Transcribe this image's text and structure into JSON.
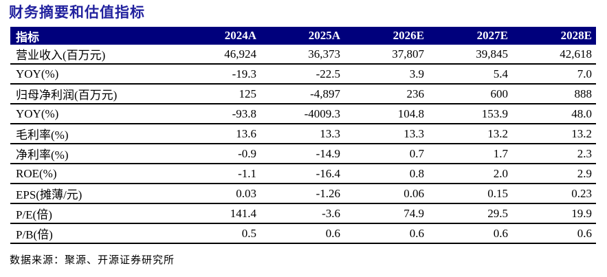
{
  "title": "财务摘要和估值指标",
  "colors": {
    "title_blue": "#22229e",
    "header_navy": "#00007c",
    "header_text": "#ffffff",
    "row_rule": "#000000",
    "body_text": "#000000"
  },
  "table": {
    "columns": [
      "指标",
      "2024A",
      "2025A",
      "2026E",
      "2027E",
      "2028E"
    ],
    "rows": [
      {
        "label": "营业收入(百万元)",
        "values": [
          "46,924",
          "36,373",
          "37,807",
          "39,845",
          "42,618"
        ]
      },
      {
        "label": "YOY(%)",
        "values": [
          "-19.3",
          "-22.5",
          "3.9",
          "5.4",
          "7.0"
        ]
      },
      {
        "label": "归母净利润(百万元)",
        "values": [
          "125",
          "-4,897",
          "236",
          "600",
          "888"
        ]
      },
      {
        "label": "YOY(%)",
        "values": [
          "-93.8",
          "-4009.3",
          "104.8",
          "153.9",
          "48.0"
        ]
      },
      {
        "label": "毛利率(%)",
        "values": [
          "13.6",
          "13.3",
          "13.3",
          "13.2",
          "13.2"
        ]
      },
      {
        "label": "净利率(%)",
        "values": [
          "-0.9",
          "-14.9",
          "0.7",
          "1.7",
          "2.3"
        ]
      },
      {
        "label": "ROE(%)",
        "values": [
          "-1.1",
          "-16.4",
          "0.8",
          "2.0",
          "2.9"
        ]
      },
      {
        "label": "EPS(摊薄/元)",
        "values": [
          "0.03",
          "-1.26",
          "0.06",
          "0.15",
          "0.23"
        ]
      },
      {
        "label": "P/E(倍)",
        "values": [
          "141.4",
          "-3.6",
          "74.9",
          "29.5",
          "19.9"
        ]
      },
      {
        "label": "P/B(倍)",
        "values": [
          "0.5",
          "0.6",
          "0.6",
          "0.6",
          "0.6"
        ]
      }
    ]
  },
  "footer": {
    "source_text": "数据来源：聚源、开源证券研究所"
  }
}
